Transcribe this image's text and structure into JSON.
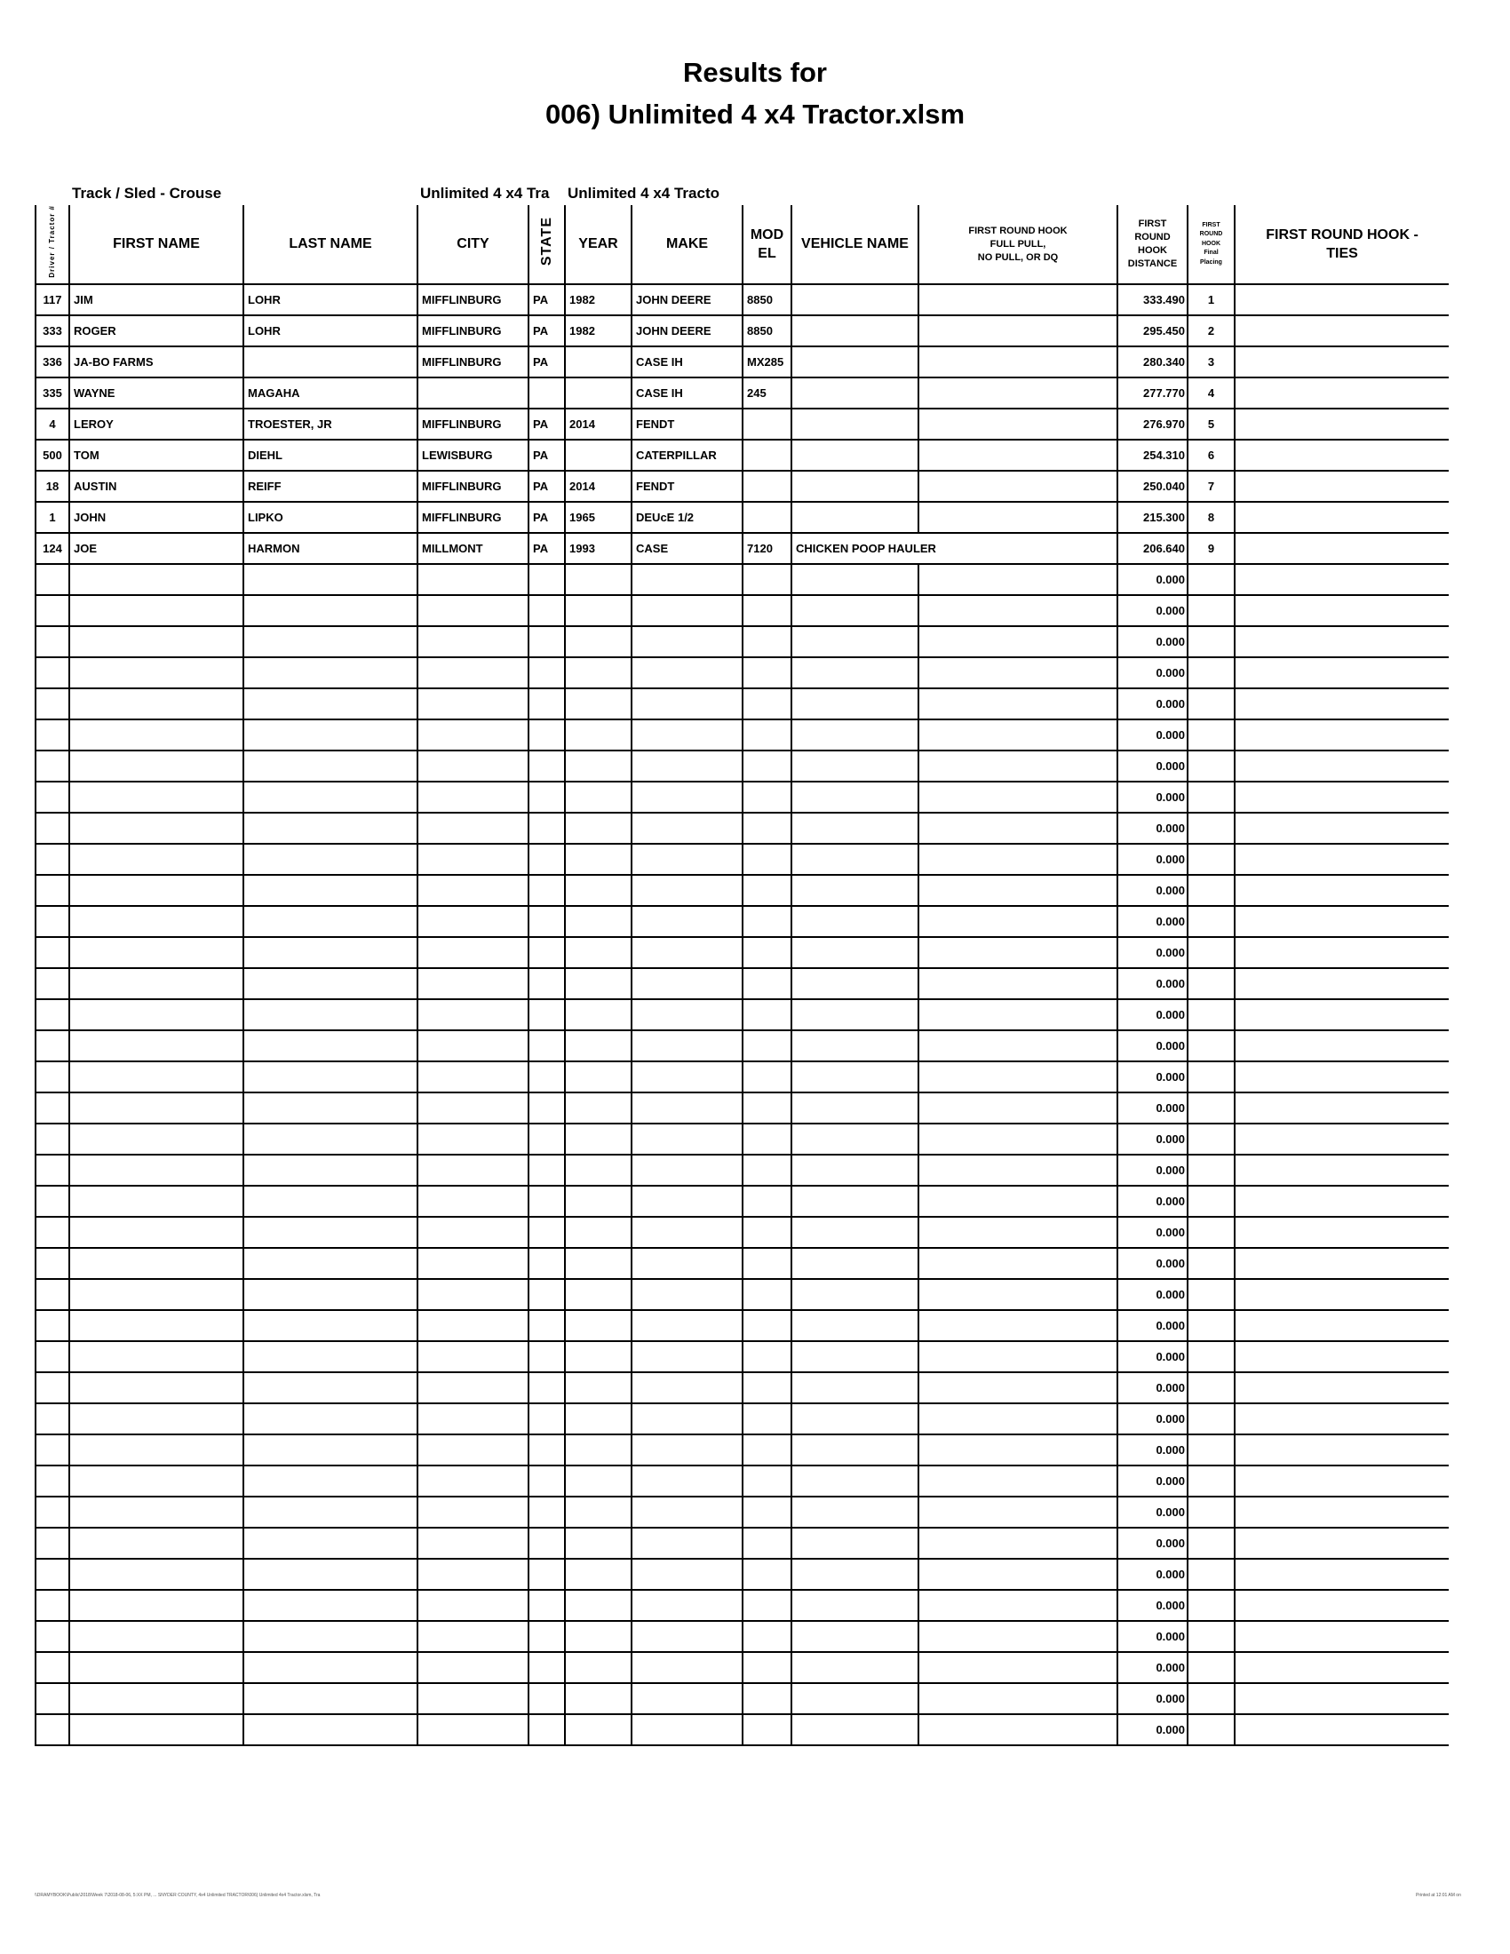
{
  "title": {
    "line1": "Results for",
    "line2": "006) Unlimited 4 x4 Tractor.xlsm"
  },
  "subheader": {
    "track": "Track / Sled - Crouse",
    "class1": "Unlimited 4 x4 Tra",
    "class2": "Unlimited 4 x4 Tracto"
  },
  "columns": {
    "number": "Driver / Tractor #",
    "first_name": "FIRST NAME",
    "last_name": "LAST NAME",
    "city": "CITY",
    "state": "STATE",
    "year": "YEAR",
    "make": "MAKE",
    "model_1": "MOD",
    "model_2": "EL",
    "vehicle": "VEHICLE NAME",
    "status_1": "FIRST ROUND HOOK",
    "status_2": "FULL PULL,",
    "status_3": "NO PULL, OR DQ",
    "distance_1": "FIRST",
    "distance_2": "ROUND",
    "distance_3": "HOOK",
    "distance_4": "DISTANCE",
    "placing_1": "FIRST",
    "placing_2": "ROUND",
    "placing_3": "HOOK",
    "placing_4": "Final",
    "placing_5": "Placing",
    "ties_1": "FIRST ROUND HOOK -",
    "ties_2": "TIES"
  },
  "rows": [
    {
      "number": "117",
      "first": "JIM",
      "last": "LOHR",
      "city": "MIFFLINBURG",
      "state": "PA",
      "year": "1982",
      "make": "JOHN DEERE",
      "model": "8850",
      "vehicle": "",
      "status": "",
      "distance": "333.490",
      "placing": "1",
      "ties": ""
    },
    {
      "number": "333",
      "first": "ROGER",
      "last": "LOHR",
      "city": "MIFFLINBURG",
      "state": "PA",
      "year": "1982",
      "make": "JOHN DEERE",
      "model": "8850",
      "vehicle": "",
      "status": "",
      "distance": "295.450",
      "placing": "2",
      "ties": ""
    },
    {
      "number": "336",
      "first": "JA-BO FARMS",
      "last": "",
      "city": "MIFFLINBURG",
      "state": "PA",
      "year": "",
      "make": "CASE IH",
      "model": "MX285",
      "vehicle": "",
      "status": "",
      "distance": "280.340",
      "placing": "3",
      "ties": ""
    },
    {
      "number": "335",
      "first": "WAYNE",
      "last": "MAGAHA",
      "city": "",
      "state": "",
      "year": "",
      "make": "CASE IH",
      "model": "245",
      "vehicle": "",
      "status": "",
      "distance": "277.770",
      "placing": "4",
      "ties": ""
    },
    {
      "number": "4",
      "first": "LEROY",
      "last": "TROESTER, JR",
      "city": "MIFFLINBURG",
      "state": "PA",
      "year": "2014",
      "make": "FENDT",
      "model": "",
      "vehicle": "",
      "status": "",
      "distance": "276.970",
      "placing": "5",
      "ties": ""
    },
    {
      "number": "500",
      "first": "TOM",
      "last": "DIEHL",
      "city": "LEWISBURG",
      "state": "PA",
      "year": "",
      "make": "CATERPILLAR",
      "model": "",
      "vehicle": "",
      "status": "",
      "distance": "254.310",
      "placing": "6",
      "ties": ""
    },
    {
      "number": "18",
      "first": "AUSTIN",
      "last": "REIFF",
      "city": "MIFFLINBURG",
      "state": "PA",
      "year": "2014",
      "make": "FENDT",
      "model": "",
      "vehicle": "",
      "status": "",
      "distance": "250.040",
      "placing": "7",
      "ties": ""
    },
    {
      "number": "1",
      "first": "JOHN",
      "last": "LIPKO",
      "city": "MIFFLINBURG",
      "state": "PA",
      "year": "1965",
      "make": "DEUcE 1/2",
      "model": "",
      "vehicle": "",
      "status": "",
      "distance": "215.300",
      "placing": "8",
      "ties": ""
    },
    {
      "number": "124",
      "first": "JOE",
      "last": "HARMON",
      "city": "MILLMONT",
      "state": "PA",
      "year": "1993",
      "make": "CASE",
      "model": "7120",
      "vehicle": "CHICKEN POOP HAULER",
      "status": "",
      "distance": "206.640",
      "placing": "9",
      "ties": ""
    }
  ],
  "empty_row_distance": "0.000",
  "empty_row_count": 38,
  "footer": {
    "left": "\\\\DRAMYBOOK\\Public\\2018\\Week 7\\2018-08-06, 5:XX PM, ... SNYDER COUNTY, 4x4 Unlimited TRACTOR\\006) Unlimited 4x4 Tractor.xlsm, Tra",
    "right": "Printed at 12:01 AM on"
  }
}
